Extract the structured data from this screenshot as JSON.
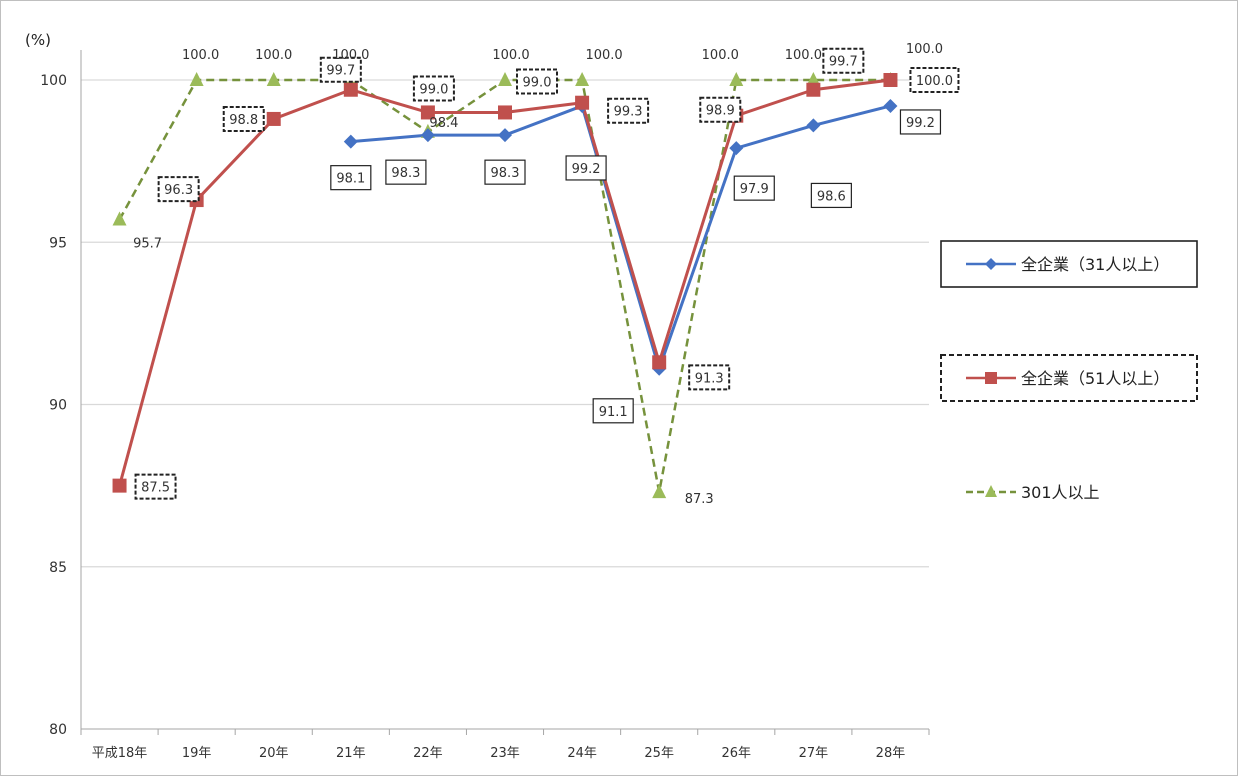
{
  "chart_data": {
    "type": "line",
    "y_unit": "(%)",
    "ylim": [
      80,
      100
    ],
    "y_ticks": [
      "80",
      "85",
      "90",
      "95",
      "100"
    ],
    "grid": true,
    "legend_position": "right",
    "categories": [
      "平成18年",
      "19年",
      "20年",
      "21年",
      "22年",
      "23年",
      "24年",
      "25年",
      "26年",
      "27年",
      "28年"
    ],
    "series": [
      {
        "name": "全企業（31人以上）",
        "color": "#4472C4",
        "marker": "diamond",
        "dash": "solid",
        "values": [
          null,
          null,
          null,
          98.1,
          98.3,
          98.3,
          99.2,
          91.1,
          97.9,
          98.6,
          99.2
        ],
        "labels": [
          "",
          "",
          "",
          "98.1",
          "98.3",
          "98.3",
          "99.2",
          "91.1",
          "97.9",
          "98.6",
          "99.2"
        ]
      },
      {
        "name": "全企業（51人以上）",
        "color": "#C0504D",
        "marker": "square",
        "dash": "solid",
        "values": [
          87.5,
          96.3,
          98.8,
          99.7,
          99.0,
          99.0,
          99.3,
          91.3,
          98.9,
          99.7,
          100.0
        ],
        "labels": [
          "87.5",
          "96.3",
          "98.8",
          "99.7",
          "99.0",
          "99.0",
          "99.3",
          "91.3",
          "98.9",
          "99.7",
          "100.0"
        ]
      },
      {
        "name": "301人以上",
        "color": "#76923C",
        "marker": "triangle",
        "dash": "dashed",
        "values": [
          95.7,
          100.0,
          100.0,
          100.0,
          98.4,
          100.0,
          100.0,
          87.3,
          100.0,
          100.0,
          100.0
        ],
        "labels": [
          "95.7",
          "100.0",
          "100.0",
          "100.0",
          "98.4",
          "100.0",
          "100.0",
          "87.3",
          "100.0",
          "100.0",
          "100.0"
        ]
      }
    ]
  }
}
